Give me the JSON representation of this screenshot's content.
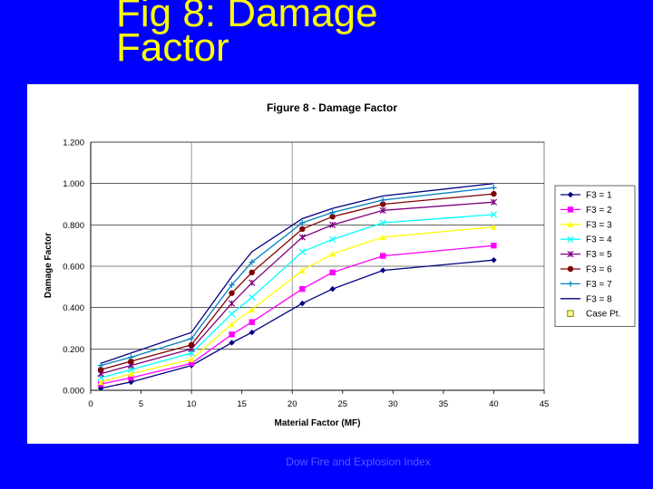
{
  "slide": {
    "title": "Fig 8:  Damage\nFactor",
    "footer": "Dow Fire and Explosion Index",
    "background": "#0000ff",
    "title_color": "#ffff00"
  },
  "chart_data": {
    "type": "line",
    "title": "Figure 8 - Damage Factor",
    "xlabel": "Material Factor (MF)",
    "ylabel": "Damage Factor",
    "xlim": [
      0,
      45
    ],
    "ylim": [
      0,
      1.2
    ],
    "x_ticks": [
      "0",
      "5",
      "10",
      "15",
      "20",
      "25",
      "30",
      "35",
      "40",
      "45"
    ],
    "y_ticks": [
      "0.000",
      "0.200",
      "0.400",
      "0.600",
      "0.800",
      "1.000",
      "1.200"
    ],
    "grid": "vertical and horizontal",
    "legend_position": "right",
    "x": [
      1,
      4,
      10,
      14,
      16,
      21,
      24,
      29,
      40
    ],
    "series": [
      {
        "name": "F3 = 1",
        "color": "#000080",
        "marker": "diamond",
        "values": [
          0.01,
          0.04,
          0.12,
          0.23,
          0.28,
          0.42,
          0.49,
          0.58,
          0.63
        ]
      },
      {
        "name": "F3 = 2",
        "color": "#ff00ff",
        "marker": "square",
        "values": [
          0.03,
          0.06,
          0.13,
          0.27,
          0.33,
          0.49,
          0.57,
          0.65,
          0.7
        ]
      },
      {
        "name": "F3 = 3",
        "color": "#ffff00",
        "marker": "triangle",
        "values": [
          0.04,
          0.08,
          0.15,
          0.32,
          0.39,
          0.58,
          0.66,
          0.74,
          0.79
        ]
      },
      {
        "name": "F3 = 4",
        "color": "#00ffff",
        "marker": "x",
        "values": [
          0.06,
          0.1,
          0.18,
          0.37,
          0.45,
          0.67,
          0.73,
          0.81,
          0.85
        ]
      },
      {
        "name": "F3 = 5",
        "color": "#800080",
        "marker": "star",
        "values": [
          0.08,
          0.12,
          0.2,
          0.42,
          0.52,
          0.74,
          0.8,
          0.87,
          0.91
        ]
      },
      {
        "name": "F3 = 6",
        "color": "#800000",
        "marker": "circle",
        "values": [
          0.1,
          0.14,
          0.22,
          0.47,
          0.57,
          0.78,
          0.84,
          0.9,
          0.95
        ]
      },
      {
        "name": "F3 = 7",
        "color": "#0080c0",
        "marker": "plus",
        "values": [
          0.12,
          0.16,
          0.25,
          0.51,
          0.62,
          0.81,
          0.86,
          0.92,
          0.98
        ]
      },
      {
        "name": "F3 = 8",
        "color": "#000080",
        "marker": "none",
        "values": [
          0.13,
          0.18,
          0.28,
          0.55,
          0.67,
          0.83,
          0.88,
          0.94,
          1.0
        ]
      }
    ],
    "case_point": {
      "name": "Case Pt.",
      "color": "#808000",
      "values": []
    }
  }
}
